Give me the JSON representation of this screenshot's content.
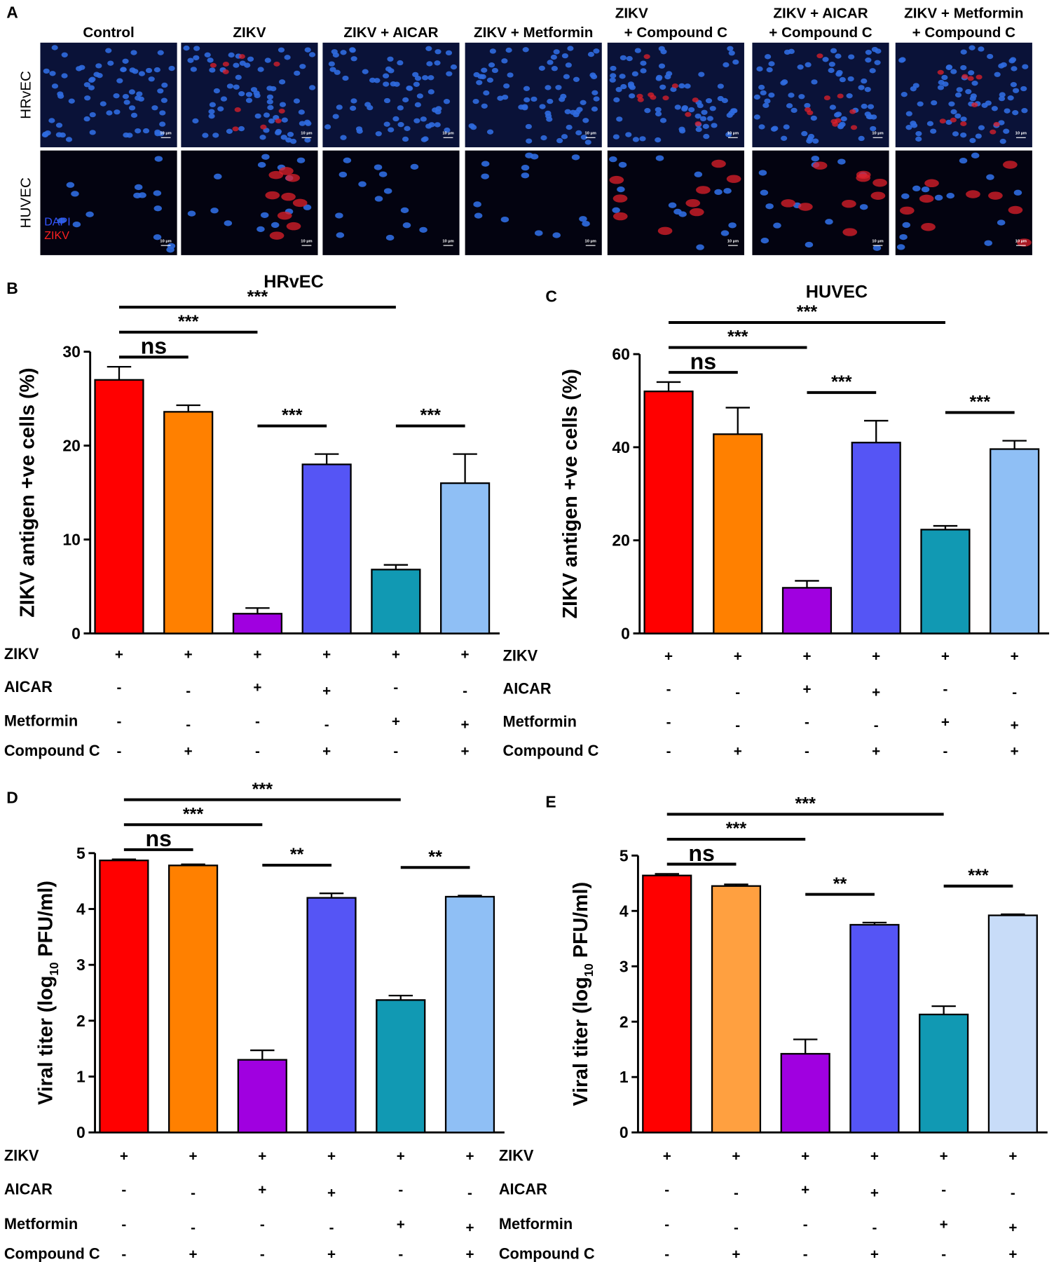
{
  "panel_a": {
    "letter": "A",
    "columns": [
      [
        "Control"
      ],
      [
        "ZIKV"
      ],
      [
        "ZIKV + AICAR"
      ],
      [
        "ZIKV + Metformin"
      ],
      [
        "ZIKV",
        "+ Compound C"
      ],
      [
        "ZIKV + AICAR",
        "+ Compound C"
      ],
      [
        "ZIKV + Metformin",
        "+ Compound C"
      ]
    ],
    "rows": [
      "HRvEC",
      "HUVEC"
    ],
    "legend": [
      {
        "name": "DAPI",
        "color": "#3355ff"
      },
      {
        "name": "ZIKV",
        "color": "#ff2020"
      }
    ],
    "scale_label": "10 µm"
  },
  "chart_data": [
    {
      "type": "bar",
      "letter": "B",
      "title": "HRvEC",
      "ylabel": {
        "text": "ZIKV antigen +ve cells (%)"
      },
      "ylim": [
        0,
        30
      ],
      "yticks": [
        0,
        10,
        20,
        30
      ],
      "values": [
        27,
        23.6,
        2.1,
        18,
        6.8,
        16
      ],
      "errors": [
        1.4,
        0.7,
        0.6,
        1.1,
        0.5,
        3.1
      ],
      "colors": [
        "#ff0000",
        "#ff8000",
        "#a000e0",
        "#5555f5",
        "#1199b3",
        "#8fbff5"
      ],
      "annotations": [
        {
          "label": "ns",
          "from": 0,
          "to": 1
        },
        {
          "label": "***",
          "from": 0,
          "to": 2
        },
        {
          "label": "***",
          "from": 0,
          "to": 4
        },
        {
          "label": "***",
          "from": 2,
          "to": 3
        },
        {
          "label": "***",
          "from": 4,
          "to": 5
        }
      ],
      "treatments": [
        {
          "name": "ZIKV",
          "signs": [
            "+",
            "+",
            "+",
            "+",
            "+",
            "+"
          ]
        },
        {
          "name": "AICAR",
          "signs": [
            "-",
            "-",
            "+",
            "+",
            "-",
            "-"
          ]
        },
        {
          "name": "Metformin",
          "signs": [
            "-",
            "-",
            "-",
            "-",
            "+",
            "+"
          ]
        },
        {
          "name": "Compound C",
          "signs": [
            "-",
            "+",
            "-",
            "+",
            "-",
            "+"
          ]
        }
      ]
    },
    {
      "type": "bar",
      "letter": "C",
      "title": "HUVEC",
      "ylabel": {
        "text": "ZIKV antigen +ve cells (%)"
      },
      "ylim": [
        0,
        60
      ],
      "yticks": [
        0,
        20,
        40,
        60
      ],
      "values": [
        52,
        42.8,
        9.8,
        41,
        22.3,
        39.6
      ],
      "errors": [
        2,
        5.7,
        1.5,
        4.7,
        0.8,
        1.8
      ],
      "colors": [
        "#ff0000",
        "#ff8000",
        "#a000e0",
        "#5555f5",
        "#1199b3",
        "#8fbff5"
      ],
      "annotations": [
        {
          "label": "ns",
          "from": 0,
          "to": 1
        },
        {
          "label": "***",
          "from": 0,
          "to": 2
        },
        {
          "label": "***",
          "from": 0,
          "to": 4
        },
        {
          "label": "***",
          "from": 2,
          "to": 3
        },
        {
          "label": "***",
          "from": 4,
          "to": 5
        }
      ],
      "treatments": [
        {
          "name": "ZIKV",
          "signs": [
            "+",
            "+",
            "+",
            "+",
            "+",
            "+"
          ]
        },
        {
          "name": "AICAR",
          "signs": [
            "-",
            "-",
            "+",
            "+",
            "-",
            "-"
          ]
        },
        {
          "name": "Metformin",
          "signs": [
            "-",
            "-",
            "-",
            "-",
            "+",
            "+"
          ]
        },
        {
          "name": "Compound C",
          "signs": [
            "-",
            "+",
            "-",
            "+",
            "-",
            "+"
          ]
        }
      ]
    },
    {
      "type": "bar",
      "letter": "D",
      "ylabel": {
        "text": "Viral titer  (log",
        "sub": "10",
        "tail": " PFU/ml)"
      },
      "ylim": [
        0,
        5
      ],
      "yticks": [
        0,
        1,
        2,
        3,
        4,
        5
      ],
      "values": [
        4.87,
        4.78,
        1.3,
        4.2,
        2.37,
        4.22
      ],
      "errors": [
        0.02,
        0.02,
        0.17,
        0.08,
        0.08,
        0.02
      ],
      "colors": [
        "#ff0000",
        "#ff8000",
        "#a000e0",
        "#5555f5",
        "#1199b3",
        "#8fbff5"
      ],
      "annotations": [
        {
          "label": "ns",
          "from": 0,
          "to": 1
        },
        {
          "label": "***",
          "from": 0,
          "to": 2
        },
        {
          "label": "***",
          "from": 0,
          "to": 4
        },
        {
          "label": "**",
          "from": 2,
          "to": 3
        },
        {
          "label": "**",
          "from": 4,
          "to": 5
        }
      ],
      "treatments": [
        {
          "name": "ZIKV",
          "signs": [
            "+",
            "+",
            "+",
            "+",
            "+",
            "+"
          ]
        },
        {
          "name": "AICAR",
          "signs": [
            "-",
            "-",
            "+",
            "+",
            "-",
            "-"
          ]
        },
        {
          "name": "Metformin",
          "signs": [
            "-",
            "-",
            "-",
            "-",
            "+",
            "+"
          ]
        },
        {
          "name": "Compound C",
          "signs": [
            "-",
            "+",
            "-",
            "+",
            "-",
            "+"
          ]
        }
      ]
    },
    {
      "type": "bar",
      "letter": "E",
      "ylabel": {
        "text": "Viral titer  (log",
        "sub": "10",
        "tail": " PFU/ml)"
      },
      "ylim": [
        0,
        5
      ],
      "yticks": [
        0,
        1,
        2,
        3,
        4,
        5
      ],
      "values": [
        4.64,
        4.45,
        1.42,
        3.75,
        2.13,
        3.92
      ],
      "errors": [
        0.03,
        0.03,
        0.26,
        0.04,
        0.15,
        0.02
      ],
      "colors": [
        "#ff0000",
        "#ffa040",
        "#a000e0",
        "#5555f5",
        "#1199b3",
        "#c8dcf8"
      ],
      "annotations": [
        {
          "label": "ns",
          "from": 0,
          "to": 1
        },
        {
          "label": "***",
          "from": 0,
          "to": 2
        },
        {
          "label": "***",
          "from": 0,
          "to": 4
        },
        {
          "label": "**",
          "from": 2,
          "to": 3
        },
        {
          "label": "***",
          "from": 4,
          "to": 5
        }
      ],
      "treatments": [
        {
          "name": "ZIKV",
          "signs": [
            "+",
            "+",
            "+",
            "+",
            "+",
            "+"
          ]
        },
        {
          "name": "AICAR",
          "signs": [
            "-",
            "-",
            "+",
            "+",
            "-",
            "-"
          ]
        },
        {
          "name": "Metformin",
          "signs": [
            "-",
            "-",
            "-",
            "-",
            "+",
            "+"
          ]
        },
        {
          "name": "Compound C",
          "signs": [
            "-",
            "+",
            "-",
            "+",
            "-",
            "+"
          ]
        }
      ]
    }
  ]
}
